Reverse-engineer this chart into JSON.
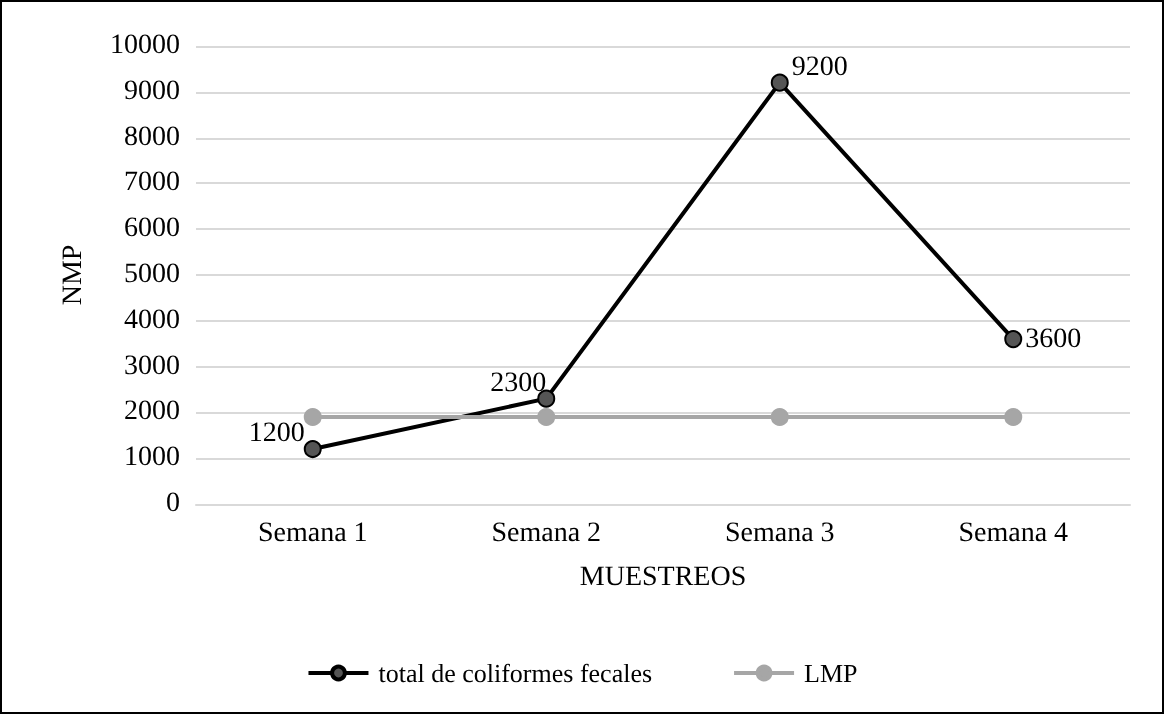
{
  "chart_data": {
    "type": "line",
    "xlabel": "MUESTREOS",
    "ylabel": "NMP",
    "categories": [
      "Semana 1",
      "Semana 2",
      "Semana 3",
      "Semana 4"
    ],
    "series": [
      {
        "name": "total de coliformes fecales",
        "color": "#000000",
        "values": [
          1200,
          2300,
          9200,
          3600
        ],
        "value_labels": [
          "1200",
          "2300",
          "9200",
          "3600"
        ]
      },
      {
        "name": "LMP",
        "color": "#a6a6a6",
        "values": [
          1900,
          1900,
          1900,
          1900
        ]
      }
    ],
    "ylim": [
      0,
      10000
    ],
    "yticks": [
      0,
      1000,
      2000,
      3000,
      4000,
      5000,
      6000,
      7000,
      8000,
      9000,
      10000
    ],
    "grid": "y",
    "legend": "bottom",
    "marker": "circle"
  }
}
